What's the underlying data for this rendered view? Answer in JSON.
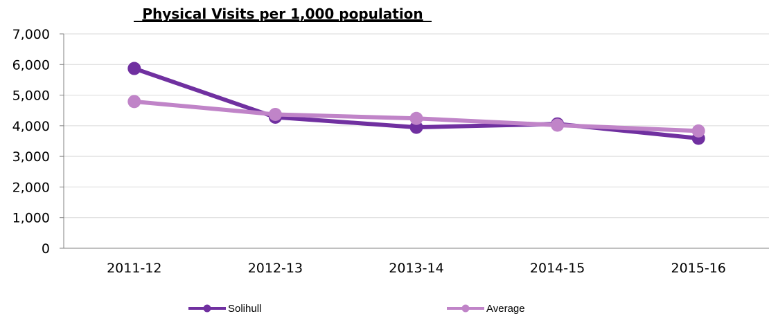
{
  "chart_data": {
    "type": "line",
    "title": "Physical Visits per 1,000 population",
    "categories": [
      "2011-12",
      "2012-13",
      "2013-14",
      "2014-15",
      "2015-16"
    ],
    "y_tick_labels": [
      "0",
      "1,000",
      "2,000",
      "3,000",
      "4,000",
      "5,000",
      "6,000",
      "7,000"
    ],
    "ylim": [
      0,
      7000
    ],
    "y_step": 1000,
    "grid": true,
    "legend_position": "bottom",
    "series": [
      {
        "name": "Solihull",
        "color": "#7030a0",
        "values": [
          5870,
          4280,
          3950,
          4060,
          3590
        ]
      },
      {
        "name": "Average",
        "color": "#c084c8",
        "values": [
          4790,
          4370,
          4240,
          4020,
          3830
        ]
      }
    ]
  }
}
